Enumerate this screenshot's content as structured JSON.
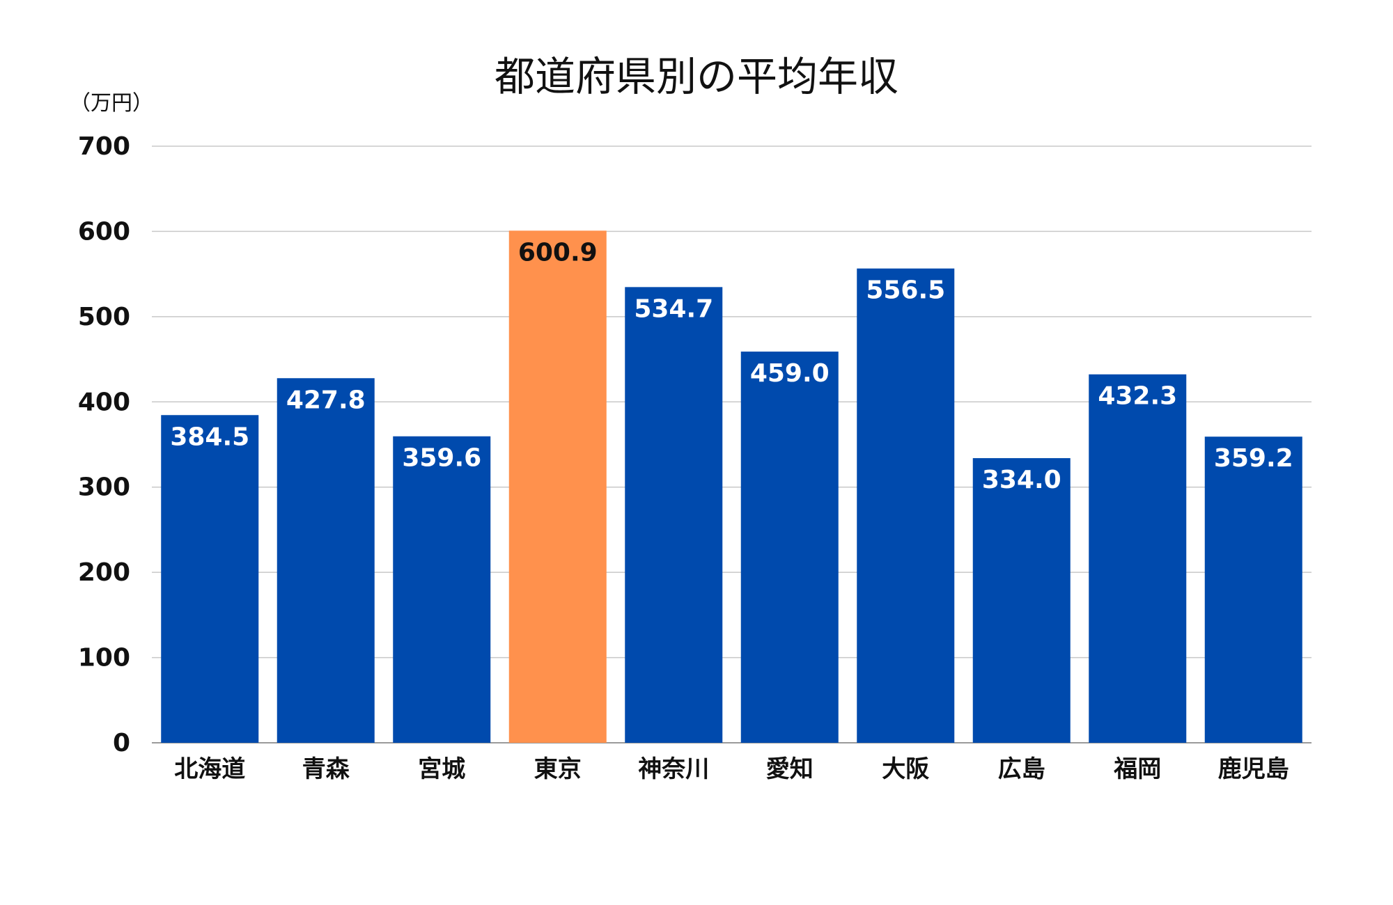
{
  "chart_data": {
    "type": "bar",
    "title": "都道府県別の平均年収",
    "unit_label": "（万円）",
    "categories": [
      "北海道",
      "青森",
      "宮城",
      "東京",
      "神奈川",
      "愛知",
      "大阪",
      "広島",
      "福岡",
      "鹿児島"
    ],
    "values": [
      384.5,
      427.8,
      359.6,
      600.9,
      534.7,
      459.0,
      556.5,
      334.0,
      432.3,
      359.2
    ],
    "value_labels": [
      "384.5",
      "427.8",
      "359.6",
      "600.9",
      "534.7",
      "459.0",
      "556.5",
      "334.0",
      "432.3",
      "359.2"
    ],
    "ylim": [
      0,
      700
    ],
    "yticks": [
      0,
      100,
      200,
      300,
      400,
      500,
      600,
      700
    ],
    "grid": true,
    "highlight_category": "東京",
    "colors": {
      "bar": "#004aad",
      "highlight": "#ff914d",
      "label_on_bar": "#ffffff",
      "label_on_highlight": "#111111"
    }
  }
}
